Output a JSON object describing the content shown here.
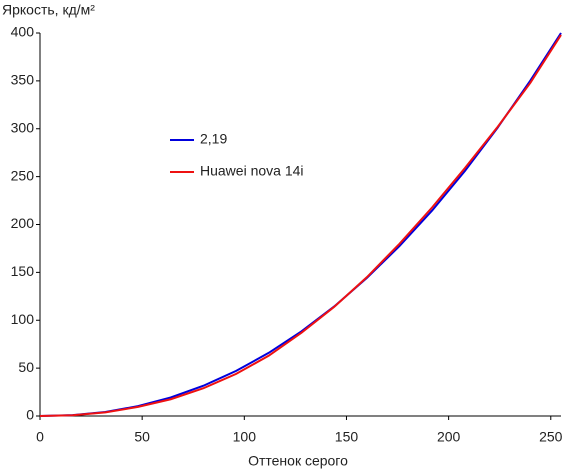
{
  "chart_data": {
    "type": "line",
    "ylabel": "Яркость, кд/м²",
    "xlabel": "Оттенок серого",
    "x": [
      0,
      16,
      32,
      48,
      64,
      80,
      96,
      112,
      128,
      144,
      160,
      176,
      192,
      208,
      224,
      240,
      255
    ],
    "series": [
      {
        "name": "2,19",
        "color": "#0000dd",
        "values": [
          0,
          0.9,
          4.2,
          10.3,
          19.4,
          31.6,
          47.1,
          66.0,
          88.4,
          114.4,
          144.2,
          177.6,
          214.8,
          256.0,
          301.2,
          350.3,
          400
        ]
      },
      {
        "name": "Huawei nova 14i",
        "color": "#ee1111",
        "values": [
          0,
          0.8,
          3.8,
          9.5,
          17.5,
          29,
          44,
          63,
          87,
          114,
          145,
          180,
          218,
          259,
          302,
          348,
          398
        ]
      }
    ],
    "xlim": [
      0,
      255
    ],
    "xticks": [
      0,
      50,
      100,
      150,
      200,
      250
    ],
    "ylim": [
      0,
      400
    ],
    "yticks": [
      0,
      50,
      100,
      150,
      200,
      250,
      300,
      350,
      400
    ]
  }
}
